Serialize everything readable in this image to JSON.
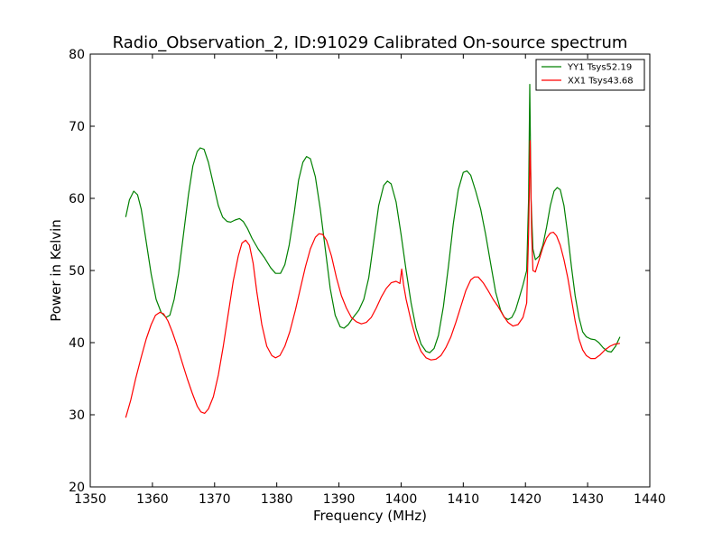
{
  "chart_data": {
    "type": "line",
    "title": "Radio_Observation_2, ID:91029 Calibrated On-source spectrum",
    "xlabel": "Frequency (MHz)",
    "ylabel": "Power in Kelvin",
    "xlim": [
      1350,
      1440
    ],
    "ylim": [
      20,
      80
    ],
    "xticks": [
      1350,
      1360,
      1370,
      1380,
      1390,
      1400,
      1410,
      1420,
      1430,
      1440
    ],
    "yticks": [
      20,
      30,
      40,
      50,
      60,
      70,
      80
    ],
    "grid": false,
    "legend_position": "top-right",
    "series": [
      {
        "name": "YY1 Tsys52.19",
        "color": "#008000",
        "points": [
          [
            1355.7,
            57.4
          ],
          [
            1356.3,
            59.8
          ],
          [
            1357.0,
            61.0
          ],
          [
            1357.6,
            60.5
          ],
          [
            1358.2,
            58.5
          ],
          [
            1359.0,
            54.0
          ],
          [
            1359.8,
            49.5
          ],
          [
            1360.6,
            46.0
          ],
          [
            1361.4,
            44.2
          ],
          [
            1362.2,
            43.5
          ],
          [
            1362.8,
            43.8
          ],
          [
            1363.5,
            46.0
          ],
          [
            1364.2,
            49.5
          ],
          [
            1365.0,
            55.0
          ],
          [
            1365.8,
            60.5
          ],
          [
            1366.5,
            64.5
          ],
          [
            1367.2,
            66.5
          ],
          [
            1367.7,
            67.0
          ],
          [
            1368.3,
            66.8
          ],
          [
            1369.0,
            65.0
          ],
          [
            1369.8,
            62.0
          ],
          [
            1370.6,
            59.0
          ],
          [
            1371.3,
            57.4
          ],
          [
            1372.0,
            56.8
          ],
          [
            1372.6,
            56.7
          ],
          [
            1373.3,
            57.0
          ],
          [
            1374.0,
            57.2
          ],
          [
            1374.6,
            56.8
          ],
          [
            1375.3,
            55.8
          ],
          [
            1376.0,
            54.5
          ],
          [
            1377.0,
            53.0
          ],
          [
            1378.0,
            51.8
          ],
          [
            1379.0,
            50.4
          ],
          [
            1379.8,
            49.6
          ],
          [
            1380.6,
            49.6
          ],
          [
            1381.3,
            50.8
          ],
          [
            1382.0,
            53.5
          ],
          [
            1382.8,
            58.0
          ],
          [
            1383.5,
            62.5
          ],
          [
            1384.2,
            65.0
          ],
          [
            1384.8,
            65.8
          ],
          [
            1385.4,
            65.5
          ],
          [
            1386.2,
            63.0
          ],
          [
            1387.0,
            58.5
          ],
          [
            1387.8,
            53.0
          ],
          [
            1388.6,
            47.5
          ],
          [
            1389.4,
            43.8
          ],
          [
            1390.2,
            42.2
          ],
          [
            1390.8,
            42.0
          ],
          [
            1391.5,
            42.5
          ],
          [
            1392.3,
            43.5
          ],
          [
            1393.2,
            44.5
          ],
          [
            1394.0,
            46.0
          ],
          [
            1394.8,
            49.0
          ],
          [
            1395.6,
            54.0
          ],
          [
            1396.4,
            59.0
          ],
          [
            1397.2,
            61.8
          ],
          [
            1397.8,
            62.4
          ],
          [
            1398.4,
            62.0
          ],
          [
            1399.2,
            59.5
          ],
          [
            1400.0,
            55.0
          ],
          [
            1400.8,
            50.0
          ],
          [
            1401.6,
            45.5
          ],
          [
            1402.4,
            42.0
          ],
          [
            1403.2,
            39.8
          ],
          [
            1404.0,
            38.8
          ],
          [
            1404.6,
            38.6
          ],
          [
            1405.3,
            39.2
          ],
          [
            1406.0,
            41.0
          ],
          [
            1406.8,
            45.0
          ],
          [
            1407.6,
            50.5
          ],
          [
            1408.4,
            56.5
          ],
          [
            1409.2,
            61.2
          ],
          [
            1410.0,
            63.6
          ],
          [
            1410.6,
            63.8
          ],
          [
            1411.2,
            63.2
          ],
          [
            1412.0,
            61.0
          ],
          [
            1412.8,
            58.5
          ],
          [
            1413.6,
            55.0
          ],
          [
            1414.4,
            51.0
          ],
          [
            1415.2,
            47.0
          ],
          [
            1416.0,
            44.5
          ],
          [
            1416.6,
            43.5
          ],
          [
            1417.2,
            43.2
          ],
          [
            1417.8,
            43.5
          ],
          [
            1418.4,
            44.5
          ],
          [
            1419.0,
            46.2
          ],
          [
            1419.6,
            48.0
          ],
          [
            1420.2,
            50.0
          ],
          [
            1420.5,
            60.0
          ],
          [
            1420.7,
            75.8
          ],
          [
            1420.9,
            60.0
          ],
          [
            1421.2,
            53.0
          ],
          [
            1421.6,
            51.5
          ],
          [
            1422.2,
            52.0
          ],
          [
            1422.8,
            53.5
          ],
          [
            1423.4,
            56.0
          ],
          [
            1424.0,
            59.0
          ],
          [
            1424.6,
            61.0
          ],
          [
            1425.1,
            61.5
          ],
          [
            1425.6,
            61.2
          ],
          [
            1426.2,
            59.0
          ],
          [
            1426.8,
            55.0
          ],
          [
            1427.4,
            50.5
          ],
          [
            1428.0,
            46.5
          ],
          [
            1428.6,
            43.5
          ],
          [
            1429.2,
            41.5
          ],
          [
            1429.8,
            40.8
          ],
          [
            1430.5,
            40.5
          ],
          [
            1431.2,
            40.4
          ],
          [
            1431.8,
            40.0
          ],
          [
            1432.5,
            39.3
          ],
          [
            1433.2,
            38.8
          ],
          [
            1433.8,
            38.7
          ],
          [
            1434.5,
            39.5
          ],
          [
            1435.2,
            40.8
          ]
        ]
      },
      {
        "name": "XX1 Tsys43.68",
        "color": "#ff0000",
        "points": [
          [
            1355.7,
            29.6
          ],
          [
            1356.5,
            32.0
          ],
          [
            1357.3,
            35.0
          ],
          [
            1358.2,
            38.0
          ],
          [
            1359.0,
            40.5
          ],
          [
            1359.8,
            42.5
          ],
          [
            1360.5,
            43.8
          ],
          [
            1361.2,
            44.2
          ],
          [
            1361.8,
            44.0
          ],
          [
            1362.5,
            43.0
          ],
          [
            1363.2,
            41.5
          ],
          [
            1364.0,
            39.5
          ],
          [
            1364.8,
            37.2
          ],
          [
            1365.6,
            35.0
          ],
          [
            1366.4,
            33.0
          ],
          [
            1367.2,
            31.2
          ],
          [
            1367.8,
            30.4
          ],
          [
            1368.4,
            30.2
          ],
          [
            1369.0,
            30.8
          ],
          [
            1369.8,
            32.5
          ],
          [
            1370.6,
            35.5
          ],
          [
            1371.4,
            39.5
          ],
          [
            1372.2,
            44.0
          ],
          [
            1373.0,
            48.5
          ],
          [
            1373.8,
            52.0
          ],
          [
            1374.4,
            53.8
          ],
          [
            1375.0,
            54.2
          ],
          [
            1375.6,
            53.5
          ],
          [
            1376.2,
            51.0
          ],
          [
            1376.8,
            47.0
          ],
          [
            1377.6,
            42.5
          ],
          [
            1378.4,
            39.5
          ],
          [
            1379.2,
            38.2
          ],
          [
            1379.8,
            37.9
          ],
          [
            1380.5,
            38.2
          ],
          [
            1381.3,
            39.5
          ],
          [
            1382.1,
            41.5
          ],
          [
            1383.0,
            44.5
          ],
          [
            1383.8,
            47.5
          ],
          [
            1384.6,
            50.5
          ],
          [
            1385.4,
            53.0
          ],
          [
            1386.2,
            54.6
          ],
          [
            1386.8,
            55.1
          ],
          [
            1387.4,
            55.0
          ],
          [
            1388.0,
            54.2
          ],
          [
            1388.8,
            52.0
          ],
          [
            1389.6,
            49.0
          ],
          [
            1390.4,
            46.5
          ],
          [
            1391.2,
            44.8
          ],
          [
            1392.0,
            43.5
          ],
          [
            1392.8,
            42.9
          ],
          [
            1393.6,
            42.6
          ],
          [
            1394.4,
            42.8
          ],
          [
            1395.2,
            43.5
          ],
          [
            1396.0,
            44.8
          ],
          [
            1396.8,
            46.3
          ],
          [
            1397.6,
            47.5
          ],
          [
            1398.4,
            48.3
          ],
          [
            1399.2,
            48.5
          ],
          [
            1399.8,
            48.2
          ],
          [
            1400.1,
            50.2
          ],
          [
            1400.4,
            48.0
          ],
          [
            1400.8,
            46.0
          ],
          [
            1401.6,
            43.0
          ],
          [
            1402.4,
            40.5
          ],
          [
            1403.2,
            38.8
          ],
          [
            1404.0,
            37.9
          ],
          [
            1404.8,
            37.6
          ],
          [
            1405.6,
            37.7
          ],
          [
            1406.4,
            38.2
          ],
          [
            1407.2,
            39.3
          ],
          [
            1408.0,
            40.8
          ],
          [
            1408.8,
            42.8
          ],
          [
            1409.6,
            45.0
          ],
          [
            1410.4,
            47.2
          ],
          [
            1411.2,
            48.7
          ],
          [
            1411.8,
            49.1
          ],
          [
            1412.4,
            49.1
          ],
          [
            1413.2,
            48.3
          ],
          [
            1414.0,
            47.2
          ],
          [
            1414.8,
            46.0
          ],
          [
            1415.6,
            45.0
          ],
          [
            1416.4,
            43.8
          ],
          [
            1417.2,
            42.8
          ],
          [
            1418.0,
            42.3
          ],
          [
            1418.8,
            42.5
          ],
          [
            1419.6,
            43.5
          ],
          [
            1420.2,
            45.5
          ],
          [
            1420.5,
            55.0
          ],
          [
            1420.75,
            68.0
          ],
          [
            1421.0,
            55.0
          ],
          [
            1421.2,
            50.0
          ],
          [
            1421.6,
            49.8
          ],
          [
            1422.2,
            51.5
          ],
          [
            1422.8,
            53.2
          ],
          [
            1423.4,
            54.5
          ],
          [
            1424.0,
            55.2
          ],
          [
            1424.5,
            55.3
          ],
          [
            1425.0,
            54.8
          ],
          [
            1425.6,
            53.5
          ],
          [
            1426.2,
            51.5
          ],
          [
            1426.8,
            49.0
          ],
          [
            1427.4,
            46.0
          ],
          [
            1428.0,
            43.0
          ],
          [
            1428.6,
            40.5
          ],
          [
            1429.2,
            39.0
          ],
          [
            1429.8,
            38.2
          ],
          [
            1430.5,
            37.8
          ],
          [
            1431.2,
            37.8
          ],
          [
            1432.0,
            38.3
          ],
          [
            1432.8,
            39.0
          ],
          [
            1433.6,
            39.5
          ],
          [
            1434.4,
            39.8
          ],
          [
            1435.2,
            39.9
          ]
        ]
      }
    ]
  }
}
